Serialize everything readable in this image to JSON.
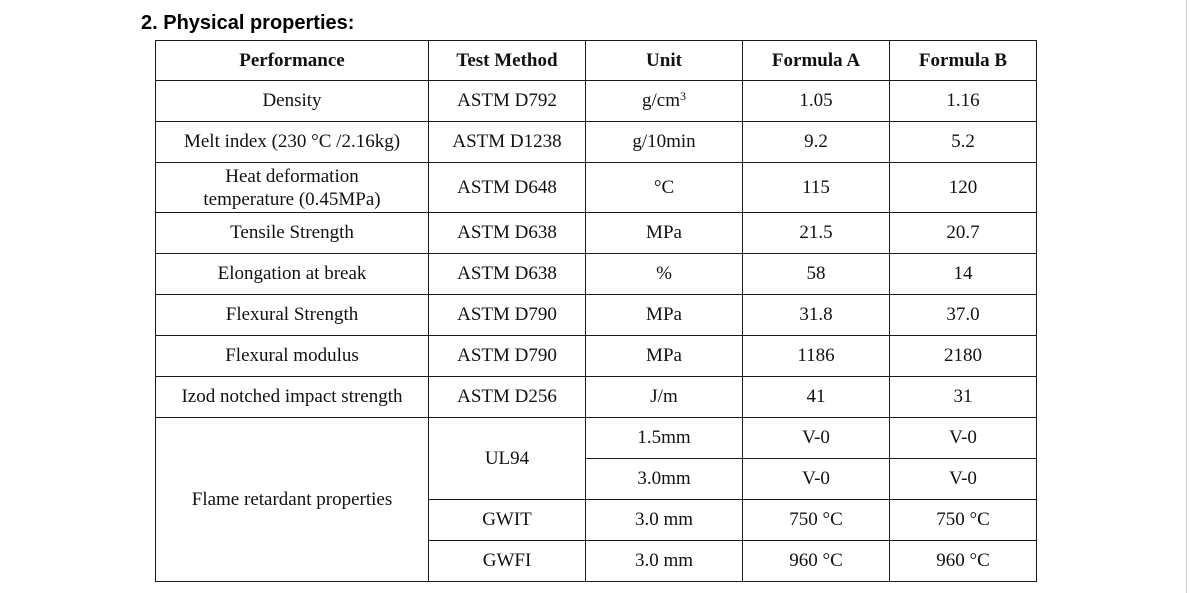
{
  "section": {
    "title": "2. Physical properties:"
  },
  "table": {
    "headers": [
      "Performance",
      "Test Method",
      "Unit",
      "Formula A",
      "Formula B"
    ],
    "rows": [
      {
        "property": "Density",
        "method": "ASTM D792",
        "unit": "g/cm",
        "unit_sup": "3",
        "a": "1.05",
        "b": "1.16"
      },
      {
        "property": "Melt index (230 °C /2.16kg)",
        "method": "ASTM D1238",
        "unit": "g/10min",
        "a": "9.2",
        "b": "5.2"
      },
      {
        "property_line1": "Heat deformation",
        "property_line2": "temperature (0.45MPa)",
        "method": "ASTM D648",
        "unit": "°C",
        "a": "115",
        "b": "120"
      },
      {
        "property": "Tensile Strength",
        "method": "ASTM D638",
        "unit": "MPa",
        "a": "21.5",
        "b": "20.7"
      },
      {
        "property": "Elongation at break",
        "method": "ASTM D638",
        "unit": "%",
        "a": "58",
        "b": "14"
      },
      {
        "property": "Flexural Strength",
        "method": "ASTM D790",
        "unit": "MPa",
        "a": "31.8",
        "b": "37.0"
      },
      {
        "property": "Flexural modulus",
        "method": "ASTM D790",
        "unit": "MPa",
        "a": "1186",
        "b": "2180"
      },
      {
        "property": "Izod notched impact strength",
        "method": "ASTM D256",
        "unit": "J/m",
        "a": "41",
        "b": "31"
      }
    ],
    "flame": {
      "property": "Flame retardant properties",
      "rows": [
        {
          "method": "UL94",
          "unit": "1.5mm",
          "a": "V-0",
          "b": "V-0"
        },
        {
          "unit": "3.0mm",
          "a": "V-0",
          "b": "V-0"
        },
        {
          "method": "GWIT",
          "unit": "3.0 mm",
          "a": "750 °C",
          "b": "750 °C"
        },
        {
          "method": "GWFI",
          "unit": "3.0 mm",
          "a": "960 °C",
          "b": "960 °C"
        }
      ]
    }
  }
}
